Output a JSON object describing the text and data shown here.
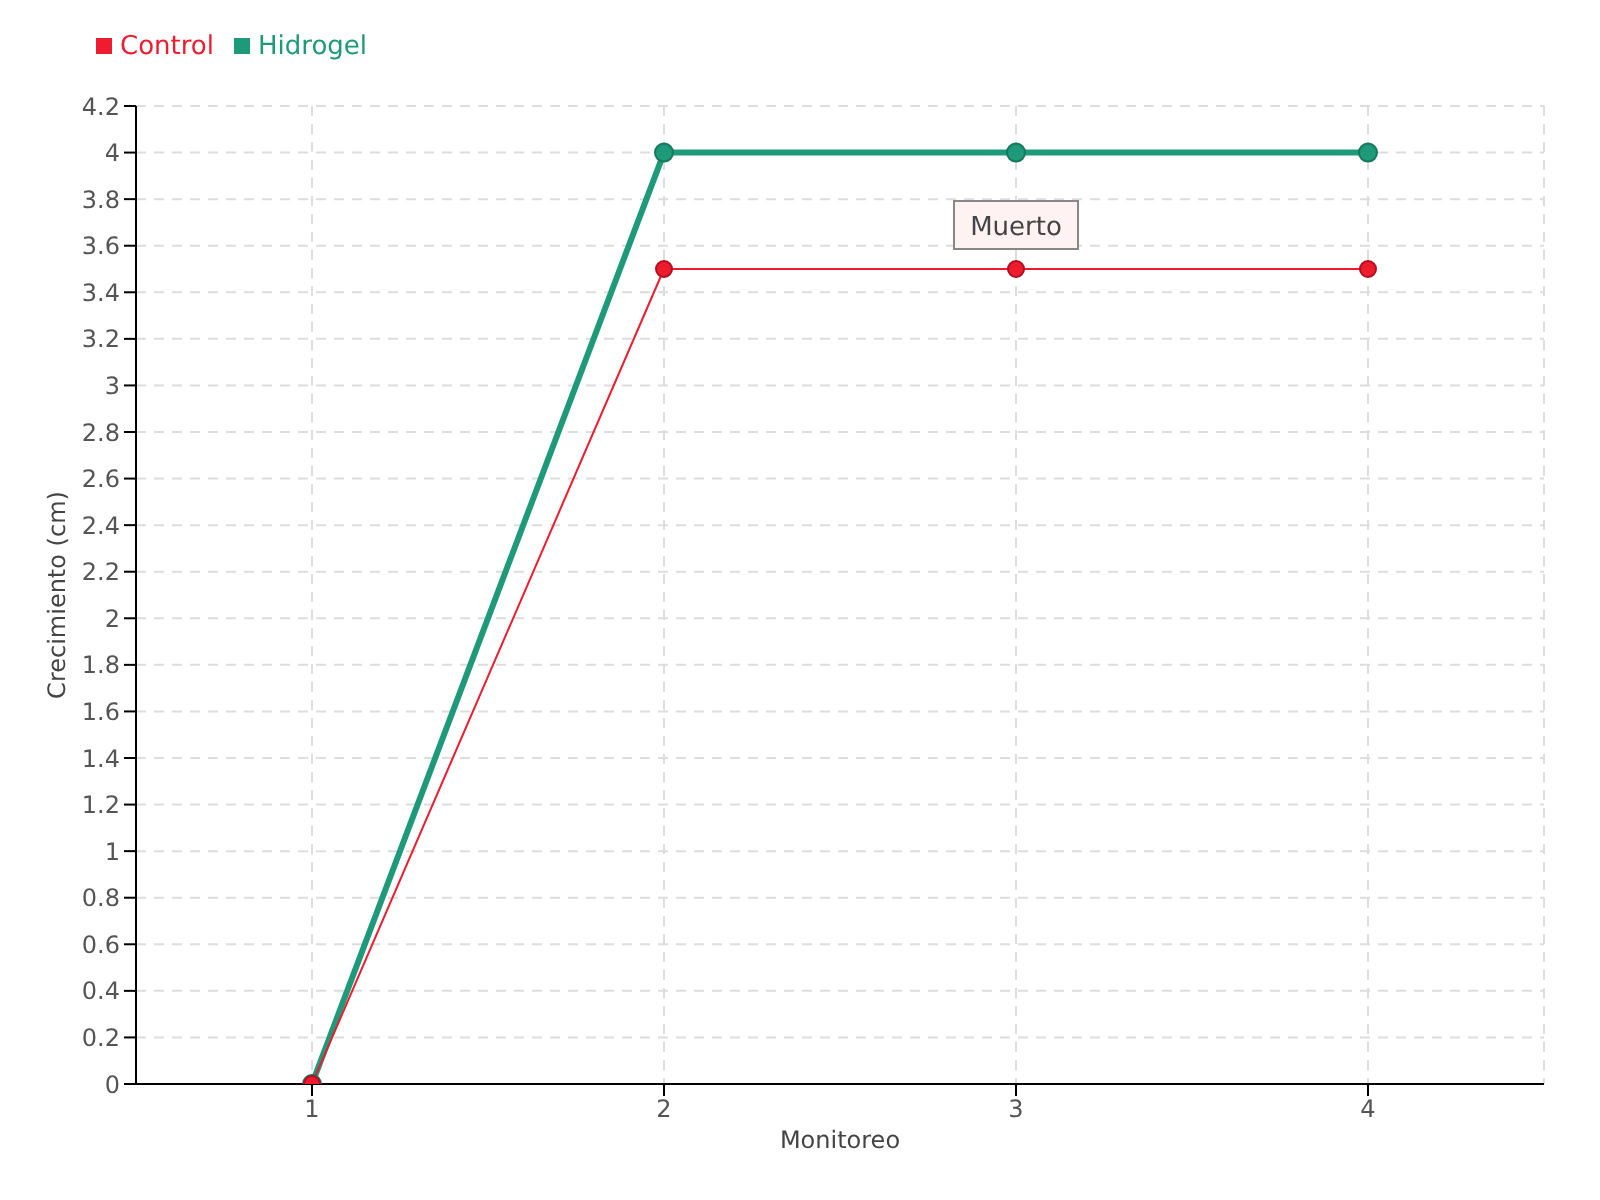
{
  "chart_data": {
    "type": "line",
    "xlabel": "Monitoreo",
    "ylabel": "Crecimiento (cm)",
    "x": [
      1,
      2,
      3,
      4
    ],
    "series": [
      {
        "name": "Hidrogel",
        "color": "#1e9a7a",
        "values": [
          0,
          4,
          4,
          4
        ]
      },
      {
        "name": "Control",
        "color": "#ee1c2e",
        "values": [
          0,
          3.5,
          3.5,
          3.5
        ]
      }
    ],
    "xlim": [
      0.5,
      4.5
    ],
    "xticks": [
      1,
      2,
      3,
      4
    ],
    "ylim": [
      0,
      4.2
    ],
    "yticks": [
      0,
      0.2,
      0.4,
      0.6,
      0.8,
      1,
      1.2,
      1.4,
      1.6,
      1.8,
      2,
      2.2,
      2.4,
      2.6,
      2.8,
      3,
      3.2,
      3.4,
      3.6,
      3.8,
      4,
      4.2
    ],
    "grid": true,
    "legend": "top left",
    "marker": "circle",
    "line_style": "solid",
    "annotations": [
      {
        "text": "Muerto",
        "x": 3,
        "y": 3.5
      }
    ]
  }
}
